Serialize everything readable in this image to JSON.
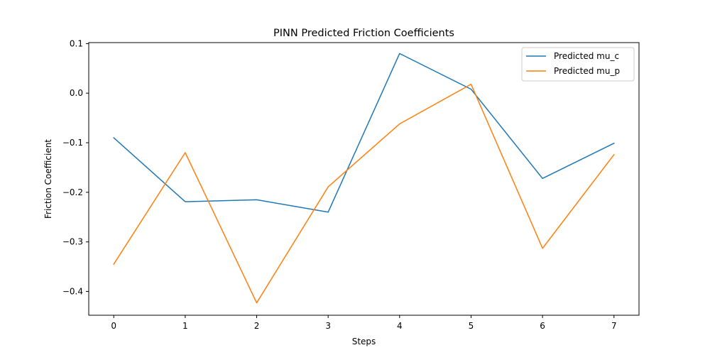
{
  "chart_data": {
    "type": "line",
    "title": "PINN Predicted Friction Coefficients",
    "xlabel": "Steps",
    "ylabel": "Friction Coefficient",
    "x": [
      0,
      1,
      2,
      3,
      4,
      5,
      6,
      7
    ],
    "xlim": [
      -0.35,
      7.35
    ],
    "ylim": [
      -0.448,
      0.102
    ],
    "xticks": [
      0,
      1,
      2,
      3,
      4,
      5,
      6,
      7
    ],
    "yticks": [
      0.1,
      0.0,
      -0.1,
      -0.2,
      -0.3,
      -0.4
    ],
    "ytick_labels": [
      "0.1",
      "0.0",
      "−0.1",
      "−0.2",
      "−0.3",
      "−0.4"
    ],
    "grid": false,
    "legend_position": "top-right",
    "series": [
      {
        "name": "Predicted mu_c",
        "color": "#1f77b4",
        "values": [
          -0.09,
          -0.219,
          -0.215,
          -0.24,
          0.08,
          0.008,
          -0.172,
          -0.101
        ]
      },
      {
        "name": "Predicted mu_p",
        "color": "#ff7f0e",
        "values": [
          -0.345,
          -0.12,
          -0.423,
          -0.189,
          -0.062,
          0.018,
          -0.313,
          -0.124
        ]
      }
    ]
  }
}
